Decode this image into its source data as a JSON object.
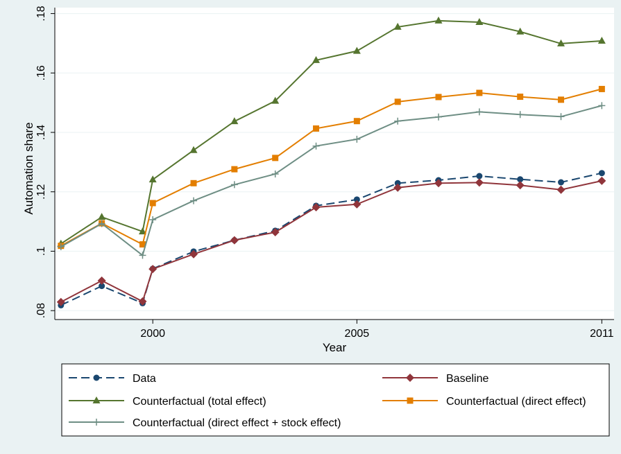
{
  "chart_data": {
    "type": "line",
    "xlabel": "Year",
    "ylabel": "Automation share",
    "xlim": [
      1997.6,
      2011.3
    ],
    "ylim": [
      0.077,
      0.182
    ],
    "x_ticks": [
      2000,
      2005,
      2011
    ],
    "y_ticks": [
      0.08,
      0.1,
      0.12,
      0.14,
      0.16,
      0.18
    ],
    "y_tick_labels": [
      ".08",
      ".1",
      ".12",
      ".14",
      ".16",
      ".18"
    ],
    "grid": "horizontal",
    "legend_position": "bottom",
    "x": [
      1997.75,
      1998.75,
      1999.75,
      2000,
      2001,
      2002,
      2003,
      2004,
      2005,
      2006,
      2007,
      2008,
      2009,
      2010,
      2011
    ],
    "series": [
      {
        "name": "Data",
        "color": "#1a476f",
        "marker": "circle",
        "dashed": true,
        "values": [
          0.0818,
          0.0883,
          0.0825,
          0.0941,
          0.0999,
          0.1037,
          0.1069,
          0.1153,
          0.1174,
          0.1229,
          0.1239,
          0.1253,
          0.1242,
          0.1232,
          0.1263
        ]
      },
      {
        "name": "Baseline",
        "color": "#90353b",
        "marker": "diamond",
        "dashed": false,
        "values": [
          0.0829,
          0.0901,
          0.0831,
          0.094,
          0.099,
          0.1037,
          0.1064,
          0.1148,
          0.1158,
          0.1214,
          0.1229,
          0.1231,
          0.1222,
          0.1207,
          0.1237
        ]
      },
      {
        "name": "Counterfactual (total effect)",
        "color": "#55752f",
        "marker": "triangle",
        "dashed": false,
        "values": [
          0.1025,
          0.1115,
          0.1066,
          0.1241,
          0.134,
          0.1437,
          0.1506,
          0.1643,
          0.1674,
          0.1755,
          0.1776,
          0.1771,
          0.1739,
          0.1699,
          0.1708
        ]
      },
      {
        "name": "Counterfactual (direct effect)",
        "color": "#e37e00",
        "marker": "square",
        "dashed": false,
        "values": [
          0.1018,
          0.1094,
          0.1023,
          0.1162,
          0.1229,
          0.1276,
          0.1314,
          0.1413,
          0.1438,
          0.1503,
          0.1519,
          0.1533,
          0.152,
          0.151,
          0.1546
        ]
      },
      {
        "name": "Counterfactual (direct effect + stock effect)",
        "color": "#6e8e84",
        "marker": "plus",
        "dashed": false,
        "values": [
          0.1015,
          0.1093,
          0.0986,
          0.1106,
          0.117,
          0.1224,
          0.126,
          0.1354,
          0.1377,
          0.1438,
          0.1452,
          0.1469,
          0.146,
          0.1453,
          0.149
        ]
      }
    ]
  }
}
